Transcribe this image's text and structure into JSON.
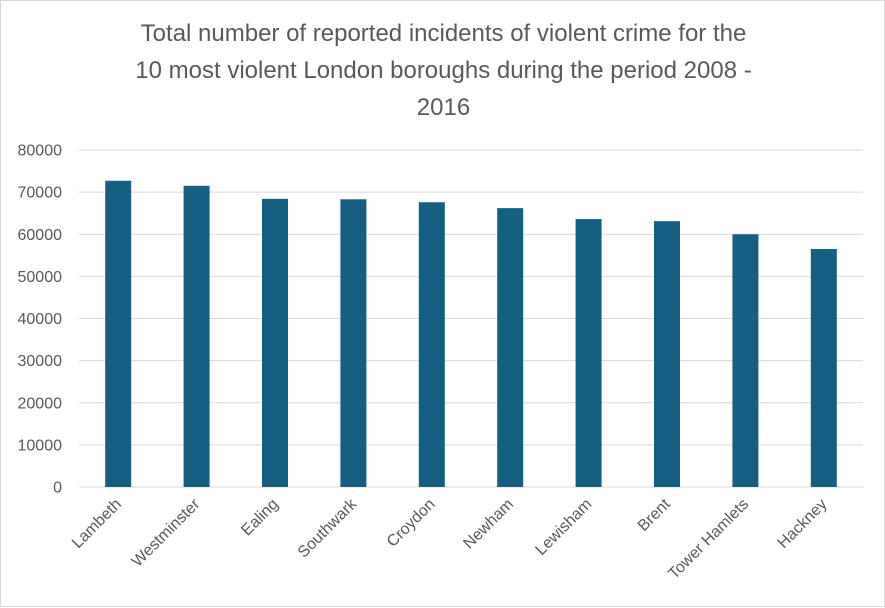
{
  "chart_data": {
    "type": "bar",
    "title": "Total number of reported incidents of violent crime for the 10 most violent London boroughs during the period 2008 - 2016",
    "title_lines": [
      "Total number of reported incidents of violent crime for the",
      "10 most violent London boroughs during the period 2008 -",
      "2016"
    ],
    "categories": [
      "Lambeth",
      "Westminster",
      "Ealing",
      "Southwark",
      "Croydon",
      "Newham",
      "Lewisham",
      "Brent",
      "Tower Hamlets",
      "Hackney"
    ],
    "values": [
      72700,
      71500,
      68400,
      68300,
      67600,
      66200,
      63600,
      63100,
      60000,
      56500
    ],
    "xlabel": "",
    "ylabel": "",
    "ylim": [
      0,
      80000
    ],
    "yticks": [
      0,
      10000,
      20000,
      30000,
      40000,
      50000,
      60000,
      70000,
      80000
    ],
    "grid": true,
    "legend": "none",
    "bar_color": "#156082"
  }
}
